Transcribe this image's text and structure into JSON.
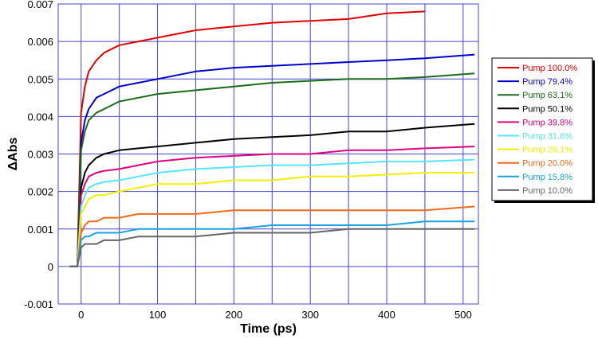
{
  "chart_data": {
    "type": "line",
    "title": "",
    "xlabel": "Time (ps)",
    "ylabel": "ΔAbs",
    "xlim": [
      -30,
      520
    ],
    "ylim": [
      -0.001,
      0.007
    ],
    "xticks": [
      0,
      100,
      200,
      300,
      400,
      500
    ],
    "xtick_labels": [
      "0",
      "100",
      "200",
      "300",
      "400",
      "500"
    ],
    "yticks": [
      -0.001,
      0,
      0.001,
      0.002,
      0.003,
      0.004,
      0.005,
      0.006,
      0.007
    ],
    "ytick_labels": [
      "-0.001",
      "0",
      "0.001",
      "0.002",
      "0.003",
      "0.004",
      "0.005",
      "0.006",
      "0.007"
    ],
    "grid": true,
    "legend_position": "right",
    "x": [
      -15,
      -5,
      0,
      5,
      10,
      20,
      30,
      50,
      75,
      100,
      150,
      200,
      250,
      300,
      350,
      400,
      450,
      515
    ],
    "series": [
      {
        "name": "Pump 100.0%",
        "color": "#e00000",
        "values": [
          0,
          0,
          0.0041,
          0.0048,
          0.0052,
          0.0055,
          0.0057,
          0.0059,
          0.006,
          0.0061,
          0.0063,
          0.0064,
          0.0065,
          0.00655,
          0.0066,
          0.00675,
          0.0068,
          null
        ]
      },
      {
        "name": "Pump 79.4%",
        "color": "#0000cc",
        "values": [
          0,
          0,
          0.0033,
          0.0039,
          0.0042,
          0.0045,
          0.0046,
          0.0048,
          0.0049,
          0.005,
          0.0052,
          0.0053,
          0.00535,
          0.0054,
          0.00545,
          0.0055,
          0.00555,
          0.00565
        ]
      },
      {
        "name": "Pump 63.1%",
        "color": "#1a6b1a",
        "values": [
          0,
          0,
          0.0031,
          0.0036,
          0.0039,
          0.0041,
          0.0042,
          0.0044,
          0.0045,
          0.0046,
          0.0047,
          0.0048,
          0.0049,
          0.00495,
          0.005,
          0.005,
          0.00505,
          0.00515
        ]
      },
      {
        "name": "Pump 50.1%",
        "color": "#000000",
        "values": [
          0,
          0,
          0.0021,
          0.0025,
          0.0027,
          0.0029,
          0.003,
          0.0031,
          0.00315,
          0.0032,
          0.0033,
          0.0034,
          0.00345,
          0.0035,
          0.0036,
          0.0036,
          0.0037,
          0.0038
        ]
      },
      {
        "name": "Pump 39.8%",
        "color": "#e0007f",
        "values": [
          0,
          0,
          0.0019,
          0.0022,
          0.0024,
          0.0025,
          0.00255,
          0.0026,
          0.0027,
          0.0028,
          0.0029,
          0.00295,
          0.003,
          0.003,
          0.0031,
          0.0031,
          0.00315,
          0.0032
        ]
      },
      {
        "name": "Pump 31.6%",
        "color": "#55e5ff",
        "values": [
          0,
          0,
          0.0016,
          0.0019,
          0.0021,
          0.0022,
          0.00225,
          0.0023,
          0.0024,
          0.0025,
          0.0026,
          0.00265,
          0.0027,
          0.0027,
          0.00275,
          0.0028,
          0.0028,
          0.00285
        ]
      },
      {
        "name": "Pump 25.1%",
        "color": "#f0f000",
        "values": [
          0,
          0,
          0.0014,
          0.0016,
          0.0018,
          0.0019,
          0.0019,
          0.002,
          0.0021,
          0.0022,
          0.0022,
          0.0023,
          0.0023,
          0.0024,
          0.0024,
          0.00245,
          0.0025,
          0.0025
        ]
      },
      {
        "name": "Pump 20.0%",
        "color": "#f06a1a",
        "values": [
          0,
          0,
          0.0009,
          0.0011,
          0.0012,
          0.0012,
          0.0013,
          0.0013,
          0.0014,
          0.0014,
          0.0014,
          0.0015,
          0.0015,
          0.0015,
          0.0015,
          0.0015,
          0.0015,
          0.0016
        ]
      },
      {
        "name": "Pump 15.8%",
        "color": "#1aa3e0",
        "values": [
          0,
          0,
          0.0007,
          0.0008,
          0.0008,
          0.0009,
          0.0009,
          0.0009,
          0.001,
          0.001,
          0.001,
          0.001,
          0.0011,
          0.0011,
          0.0011,
          0.0011,
          0.0012,
          0.0012
        ]
      },
      {
        "name": "Pump 10.0%",
        "color": "#666666",
        "values": [
          0,
          0,
          0.0005,
          0.0006,
          0.0006,
          0.0006,
          0.0007,
          0.0007,
          0.0008,
          0.0008,
          0.0008,
          0.0009,
          0.0009,
          0.0009,
          0.001,
          0.001,
          0.001,
          0.001
        ]
      }
    ]
  }
}
